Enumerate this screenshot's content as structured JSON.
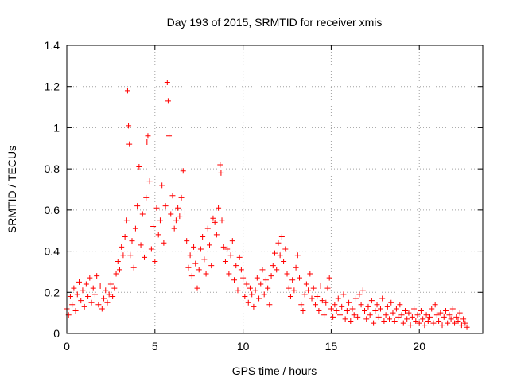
{
  "chart_data": {
    "type": "scatter",
    "title": "Day 193 of 2015, SRMTID for receiver xmis",
    "xlabel": "GPS time / hours",
    "ylabel": "SRMTID / TECUs",
    "xlim": [
      0,
      23.6
    ],
    "ylim": [
      0,
      1.4
    ],
    "xticks": [
      0,
      5,
      10,
      15,
      20
    ],
    "yticks": [
      0,
      0.2,
      0.4,
      0.6,
      0.8,
      1,
      1.2,
      1.4
    ],
    "xtick_labels": [
      "0",
      "5",
      "10",
      "15",
      "20"
    ],
    "ytick_labels": [
      "0",
      "0.2",
      "0.4",
      "0.6",
      "0.8",
      "1",
      "1.2",
      "1.4"
    ],
    "grid": true,
    "marker": "plus",
    "color": "#ff0000",
    "series": [
      {
        "name": "SRMTID",
        "points": [
          [
            0.0,
            0.12
          ],
          [
            0.1,
            0.09
          ],
          [
            0.2,
            0.18
          ],
          [
            0.3,
            0.14
          ],
          [
            0.4,
            0.22
          ],
          [
            0.5,
            0.11
          ],
          [
            0.6,
            0.19
          ],
          [
            0.7,
            0.25
          ],
          [
            0.8,
            0.16
          ],
          [
            0.9,
            0.21
          ],
          [
            1.0,
            0.13
          ],
          [
            1.1,
            0.24
          ],
          [
            1.2,
            0.18
          ],
          [
            1.3,
            0.27
          ],
          [
            1.4,
            0.15
          ],
          [
            1.5,
            0.22
          ],
          [
            1.6,
            0.19
          ],
          [
            1.7,
            0.28
          ],
          [
            1.8,
            0.14
          ],
          [
            1.9,
            0.23
          ],
          [
            2.0,
            0.12
          ],
          [
            2.1,
            0.17
          ],
          [
            2.2,
            0.21
          ],
          [
            2.3,
            0.15
          ],
          [
            2.4,
            0.19
          ],
          [
            2.5,
            0.24
          ],
          [
            2.6,
            0.18
          ],
          [
            2.7,
            0.22
          ],
          [
            2.8,
            0.29
          ],
          [
            2.9,
            0.35
          ],
          [
            3.0,
            0.31
          ],
          [
            3.1,
            0.42
          ],
          [
            3.2,
            0.38
          ],
          [
            3.3,
            0.47
          ],
          [
            3.4,
            0.55
          ],
          [
            3.45,
            1.18
          ],
          [
            3.5,
            1.01
          ],
          [
            3.55,
            0.92
          ],
          [
            3.6,
            0.38
          ],
          [
            3.7,
            0.45
          ],
          [
            3.8,
            0.32
          ],
          [
            3.9,
            0.51
          ],
          [
            4.0,
            0.62
          ],
          [
            4.1,
            0.81
          ],
          [
            4.2,
            0.43
          ],
          [
            4.3,
            0.58
          ],
          [
            4.4,
            0.37
          ],
          [
            4.5,
            0.66
          ],
          [
            4.55,
            0.93
          ],
          [
            4.6,
            0.96
          ],
          [
            4.7,
            0.74
          ],
          [
            4.8,
            0.41
          ],
          [
            4.9,
            0.52
          ],
          [
            5.0,
            0.35
          ],
          [
            5.1,
            0.61
          ],
          [
            5.2,
            0.48
          ],
          [
            5.3,
            0.55
          ],
          [
            5.4,
            0.72
          ],
          [
            5.5,
            0.44
          ],
          [
            5.6,
            0.62
          ],
          [
            5.7,
            1.22
          ],
          [
            5.75,
            1.13
          ],
          [
            5.8,
            0.96
          ],
          [
            5.9,
            0.58
          ],
          [
            6.0,
            0.67
          ],
          [
            6.1,
            0.51
          ],
          [
            6.2,
            0.55
          ],
          [
            6.3,
            0.61
          ],
          [
            6.4,
            0.57
          ],
          [
            6.5,
            0.66
          ],
          [
            6.6,
            0.79
          ],
          [
            6.7,
            0.59
          ],
          [
            6.8,
            0.45
          ],
          [
            6.9,
            0.32
          ],
          [
            7.0,
            0.38
          ],
          [
            7.1,
            0.28
          ],
          [
            7.2,
            0.42
          ],
          [
            7.3,
            0.34
          ],
          [
            7.4,
            0.22
          ],
          [
            7.5,
            0.31
          ],
          [
            7.6,
            0.41
          ],
          [
            7.7,
            0.47
          ],
          [
            7.8,
            0.36
          ],
          [
            7.9,
            0.29
          ],
          [
            8.0,
            0.51
          ],
          [
            8.1,
            0.43
          ],
          [
            8.2,
            0.33
          ],
          [
            8.3,
            0.56
          ],
          [
            8.4,
            0.54
          ],
          [
            8.5,
            0.48
          ],
          [
            8.6,
            0.61
          ],
          [
            8.7,
            0.82
          ],
          [
            8.75,
            0.78
          ],
          [
            8.8,
            0.55
          ],
          [
            8.9,
            0.42
          ],
          [
            9.0,
            0.35
          ],
          [
            9.1,
            0.41
          ],
          [
            9.2,
            0.29
          ],
          [
            9.3,
            0.38
          ],
          [
            9.4,
            0.45
          ],
          [
            9.5,
            0.26
          ],
          [
            9.6,
            0.33
          ],
          [
            9.7,
            0.21
          ],
          [
            9.8,
            0.37
          ],
          [
            9.9,
            0.31
          ],
          [
            10.0,
            0.27
          ],
          [
            10.1,
            0.18
          ],
          [
            10.2,
            0.24
          ],
          [
            10.3,
            0.15
          ],
          [
            10.4,
            0.22
          ],
          [
            10.5,
            0.19
          ],
          [
            10.6,
            0.13
          ],
          [
            10.7,
            0.21
          ],
          [
            10.8,
            0.27
          ],
          [
            10.9,
            0.17
          ],
          [
            11.0,
            0.24
          ],
          [
            11.1,
            0.31
          ],
          [
            11.2,
            0.19
          ],
          [
            11.3,
            0.26
          ],
          [
            11.4,
            0.22
          ],
          [
            11.5,
            0.14
          ],
          [
            11.6,
            0.28
          ],
          [
            11.7,
            0.33
          ],
          [
            11.8,
            0.39
          ],
          [
            11.9,
            0.31
          ],
          [
            12.0,
            0.44
          ],
          [
            12.1,
            0.38
          ],
          [
            12.2,
            0.47
          ],
          [
            12.3,
            0.35
          ],
          [
            12.4,
            0.41
          ],
          [
            12.5,
            0.29
          ],
          [
            12.6,
            0.22
          ],
          [
            12.7,
            0.18
          ],
          [
            12.8,
            0.26
          ],
          [
            12.9,
            0.21
          ],
          [
            13.0,
            0.32
          ],
          [
            13.1,
            0.38
          ],
          [
            13.2,
            0.27
          ],
          [
            13.3,
            0.14
          ],
          [
            13.4,
            0.11
          ],
          [
            13.5,
            0.19
          ],
          [
            13.6,
            0.24
          ],
          [
            13.7,
            0.21
          ],
          [
            13.8,
            0.29
          ],
          [
            13.9,
            0.17
          ],
          [
            14.0,
            0.22
          ],
          [
            14.1,
            0.14
          ],
          [
            14.2,
            0.18
          ],
          [
            14.3,
            0.11
          ],
          [
            14.4,
            0.23
          ],
          [
            14.5,
            0.16
          ],
          [
            14.6,
            0.09
          ],
          [
            14.7,
            0.15
          ],
          [
            14.8,
            0.22
          ],
          [
            14.9,
            0.27
          ],
          [
            15.0,
            0.12
          ],
          [
            15.1,
            0.08
          ],
          [
            15.2,
            0.14
          ],
          [
            15.3,
            0.11
          ],
          [
            15.4,
            0.17
          ],
          [
            15.5,
            0.09
          ],
          [
            15.6,
            0.13
          ],
          [
            15.7,
            0.19
          ],
          [
            15.8,
            0.07
          ],
          [
            15.9,
            0.11
          ],
          [
            16.0,
            0.15
          ],
          [
            16.1,
            0.06
          ],
          [
            16.2,
            0.12
          ],
          [
            16.3,
            0.09
          ],
          [
            16.4,
            0.17
          ],
          [
            16.5,
            0.08
          ],
          [
            16.6,
            0.19
          ],
          [
            16.7,
            0.14
          ],
          [
            16.8,
            0.21
          ],
          [
            16.9,
            0.11
          ],
          [
            17.0,
            0.07
          ],
          [
            17.1,
            0.13
          ],
          [
            17.2,
            0.09
          ],
          [
            17.3,
            0.16
          ],
          [
            17.4,
            0.05
          ],
          [
            17.5,
            0.11
          ],
          [
            17.6,
            0.14
          ],
          [
            17.7,
            0.08
          ],
          [
            17.8,
            0.12
          ],
          [
            17.9,
            0.17
          ],
          [
            18.0,
            0.06
          ],
          [
            18.1,
            0.09
          ],
          [
            18.2,
            0.13
          ],
          [
            18.3,
            0.07
          ],
          [
            18.4,
            0.15
          ],
          [
            18.5,
            0.1
          ],
          [
            18.6,
            0.06
          ],
          [
            18.7,
            0.12
          ],
          [
            18.8,
            0.08
          ],
          [
            18.9,
            0.14
          ],
          [
            19.0,
            0.09
          ],
          [
            19.1,
            0.05
          ],
          [
            19.2,
            0.11
          ],
          [
            19.3,
            0.07
          ],
          [
            19.4,
            0.1
          ],
          [
            19.5,
            0.04
          ],
          [
            19.6,
            0.08
          ],
          [
            19.7,
            0.12
          ],
          [
            19.8,
            0.06
          ],
          [
            19.9,
            0.09
          ],
          [
            20.0,
            0.05
          ],
          [
            20.1,
            0.11
          ],
          [
            20.2,
            0.07
          ],
          [
            20.3,
            0.04
          ],
          [
            20.4,
            0.09
          ],
          [
            20.5,
            0.06
          ],
          [
            20.6,
            0.08
          ],
          [
            20.7,
            0.12
          ],
          [
            20.8,
            0.05
          ],
          [
            20.9,
            0.14
          ],
          [
            21.0,
            0.09
          ],
          [
            21.1,
            0.06
          ],
          [
            21.2,
            0.1
          ],
          [
            21.3,
            0.04
          ],
          [
            21.4,
            0.08
          ],
          [
            21.5,
            0.11
          ],
          [
            21.6,
            0.05
          ],
          [
            21.7,
            0.09
          ],
          [
            21.8,
            0.07
          ],
          [
            21.9,
            0.12
          ],
          [
            22.0,
            0.05
          ],
          [
            22.1,
            0.08
          ],
          [
            22.2,
            0.06
          ],
          [
            22.3,
            0.1
          ],
          [
            22.4,
            0.04
          ],
          [
            22.5,
            0.07
          ],
          [
            22.6,
            0.05
          ],
          [
            22.7,
            0.03
          ]
        ]
      }
    ]
  }
}
